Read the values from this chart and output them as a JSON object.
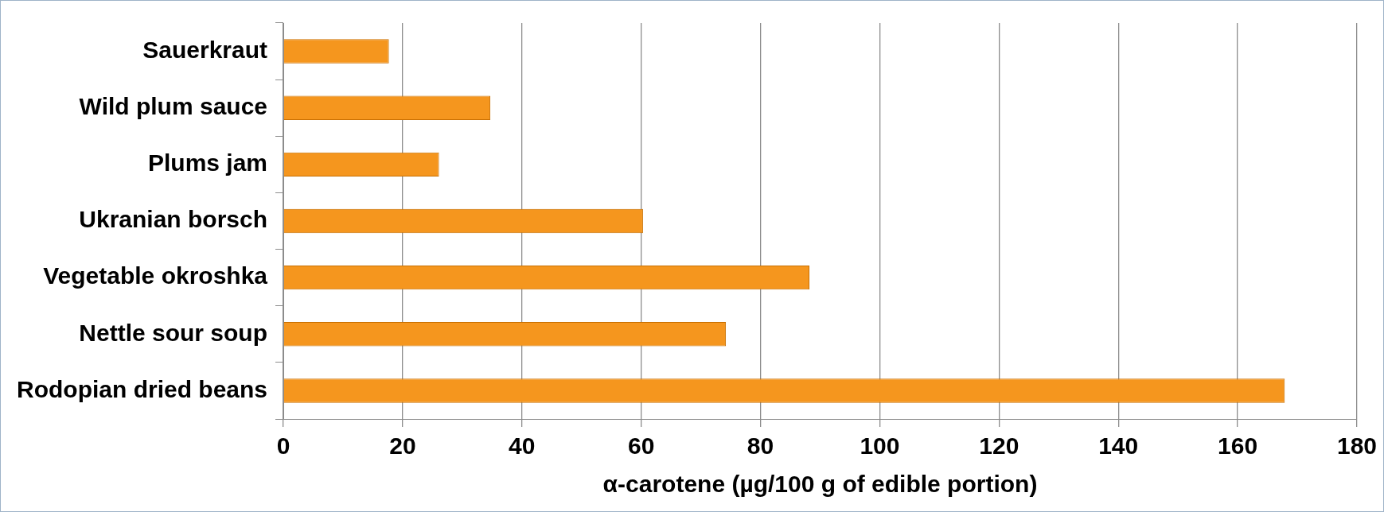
{
  "chart_data": {
    "type": "bar",
    "orientation": "horizontal",
    "xlabel": "α-carotene (µg/100 g of edible portion)",
    "categories": [
      "Sauerkraut",
      "Wild plum sauce",
      "Plums jam",
      "Ukranian borsch",
      "Vegetable okroshka",
      "Nettle sour soup",
      "Rodopian dried beans"
    ],
    "values": [
      17.7,
      34.7,
      26.1,
      60.3,
      88.2,
      74.2,
      167.9
    ],
    "color": "#f5961e",
    "xlim": [
      0,
      180
    ],
    "xticks": [
      0,
      20,
      40,
      60,
      80,
      100,
      120,
      140,
      160,
      180
    ],
    "grid": "x"
  }
}
